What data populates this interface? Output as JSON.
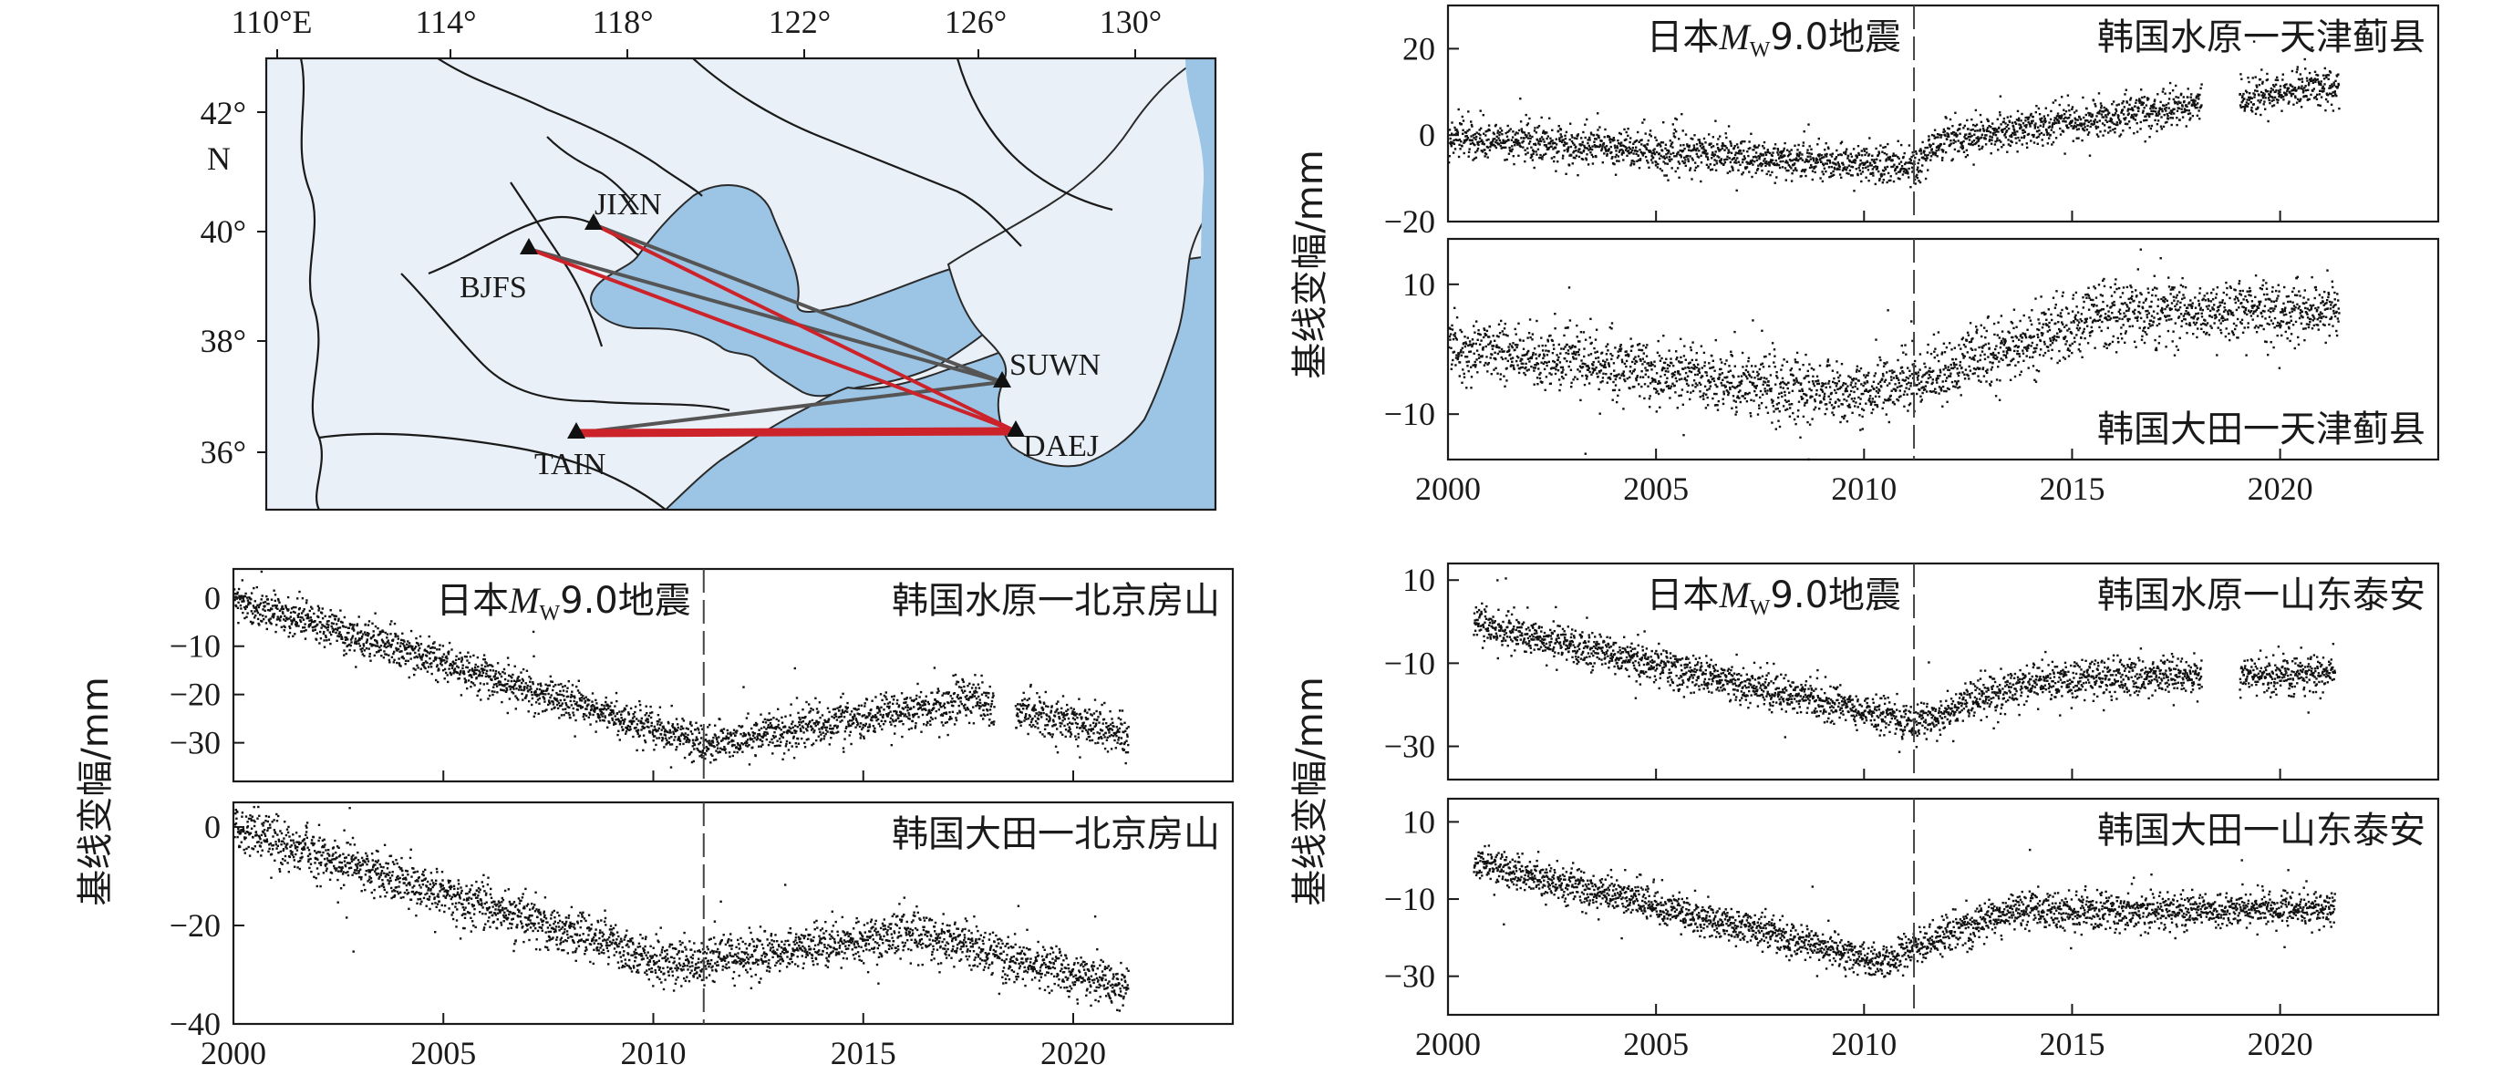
{
  "map": {
    "lon_ticks": [
      "110°E",
      "114°",
      "118°",
      "122°",
      "126°",
      "130°"
    ],
    "lat_ticks": [
      "42°",
      "40°",
      "38°",
      "36°"
    ],
    "lat_unit": "N",
    "stations": [
      {
        "name": "JIXN",
        "lon": 117.5,
        "lat": 40.1
      },
      {
        "name": "BJFS",
        "lon": 115.9,
        "lat": 39.6
      },
      {
        "name": "SUWN",
        "lon": 127.0,
        "lat": 37.3
      },
      {
        "name": "DAEJ",
        "lon": 127.4,
        "lat": 36.4
      },
      {
        "name": "TAIN",
        "lon": 117.1,
        "lat": 36.2
      }
    ],
    "colors": {
      "land": "#e9f0f7",
      "sea": "#9cc4e4",
      "highlight_line": "#cc2229",
      "line": "#555555"
    }
  },
  "chart_data": [
    {
      "type": "scatter",
      "id": "p1",
      "title": "韩国水原一天津蓟县",
      "quake_label_pre": "日本",
      "quake_label_m": "M",
      "quake_label_sub": "W",
      "quake_label_post": "9.0地震",
      "ylabel": "基线变幅/mm",
      "xlim": [
        2000,
        2023.8
      ],
      "ylim": [
        -20,
        30
      ],
      "yticks": [
        20,
        0,
        -20
      ],
      "event_x": 2011.2,
      "trend": [
        [
          2000.0,
          0
        ],
        [
          2011.2,
          -7.5
        ],
        [
          2011.8,
          -1
        ],
        [
          2021.4,
          12
        ]
      ],
      "noise": 2.2,
      "gap_start": 2018.1,
      "gap_end": 2019.0
    },
    {
      "type": "scatter",
      "id": "p2",
      "title": "韩国大田一天津蓟县",
      "xlim": [
        2000,
        2023.8
      ],
      "ylim": [
        -17,
        17
      ],
      "yticks": [
        10,
        -10
      ],
      "event_x": 2011.2,
      "trend": [
        [
          2000.0,
          0.5
        ],
        [
          2009.8,
          -7
        ],
        [
          2011.2,
          -4.5
        ],
        [
          2016.0,
          6
        ],
        [
          2021.4,
          6
        ]
      ],
      "noise": 2.4,
      "xticks": [
        "2000",
        "2005",
        "2010",
        "2015",
        "2020"
      ]
    },
    {
      "type": "scatter",
      "id": "p3",
      "title": "韩国水原一北京房山",
      "quake_label_pre": "日本",
      "quake_label_m": "M",
      "quake_label_sub": "W",
      "quake_label_post": "9.0地震",
      "ylabel": "基线变幅/mm",
      "xlim": [
        2000,
        2023.8
      ],
      "ylim": [
        -38,
        6
      ],
      "yticks": [
        0,
        -10,
        -20,
        -30
      ],
      "event_x": 2011.2,
      "trend": [
        [
          2000.0,
          0
        ],
        [
          2011.2,
          -30
        ],
        [
          2017.5,
          -21
        ],
        [
          2021.3,
          -28
        ]
      ],
      "noise": 2.0,
      "gap_start": 2018.1,
      "gap_end": 2018.6
    },
    {
      "type": "scatter",
      "id": "p4",
      "title": "韩国大田一北京房山",
      "xlim": [
        2000,
        2023.8
      ],
      "ylim": [
        -40,
        5
      ],
      "yticks": [
        0,
        -20,
        -40
      ],
      "event_x": 2011.2,
      "trend": [
        [
          2000.0,
          0
        ],
        [
          2010.5,
          -28
        ],
        [
          2016.3,
          -21
        ],
        [
          2021.3,
          -33
        ]
      ],
      "noise": 2.4,
      "xticks": [
        "2000",
        "2005",
        "2010",
        "2015",
        "2020"
      ]
    },
    {
      "type": "scatter",
      "id": "p5",
      "title": "韩国水原一山东泰安",
      "quake_label_pre": "日本",
      "quake_label_m": "M",
      "quake_label_sub": "W",
      "quake_label_post": "9.0地震",
      "ylabel": "基线变幅/mm",
      "xlim": [
        2000,
        2023.8
      ],
      "ylim": [
        -38,
        14
      ],
      "yticks": [
        10,
        -10,
        -30
      ],
      "event_x": 2011.2,
      "trend": [
        [
          2000.6,
          0
        ],
        [
          2011.2,
          -24
        ],
        [
          2014.0,
          -14
        ],
        [
          2021.3,
          -12
        ]
      ],
      "noise": 2.3,
      "gap_start": 2018.1,
      "gap_end": 2019.0
    },
    {
      "type": "scatter",
      "id": "p6",
      "title": "韩国大田一山东泰安",
      "xlim": [
        2000,
        2023.8
      ],
      "ylim": [
        -40,
        16
      ],
      "yticks": [
        10,
        -10,
        -30
      ],
      "event_x": 2011.2,
      "trend": [
        [
          2000.6,
          0
        ],
        [
          2010.5,
          -26
        ],
        [
          2011.2,
          -22
        ],
        [
          2013.5,
          -13
        ],
        [
          2021.3,
          -12
        ]
      ],
      "noise": 2.3,
      "xticks": [
        "2000",
        "2005",
        "2010",
        "2015",
        "2020"
      ]
    }
  ]
}
